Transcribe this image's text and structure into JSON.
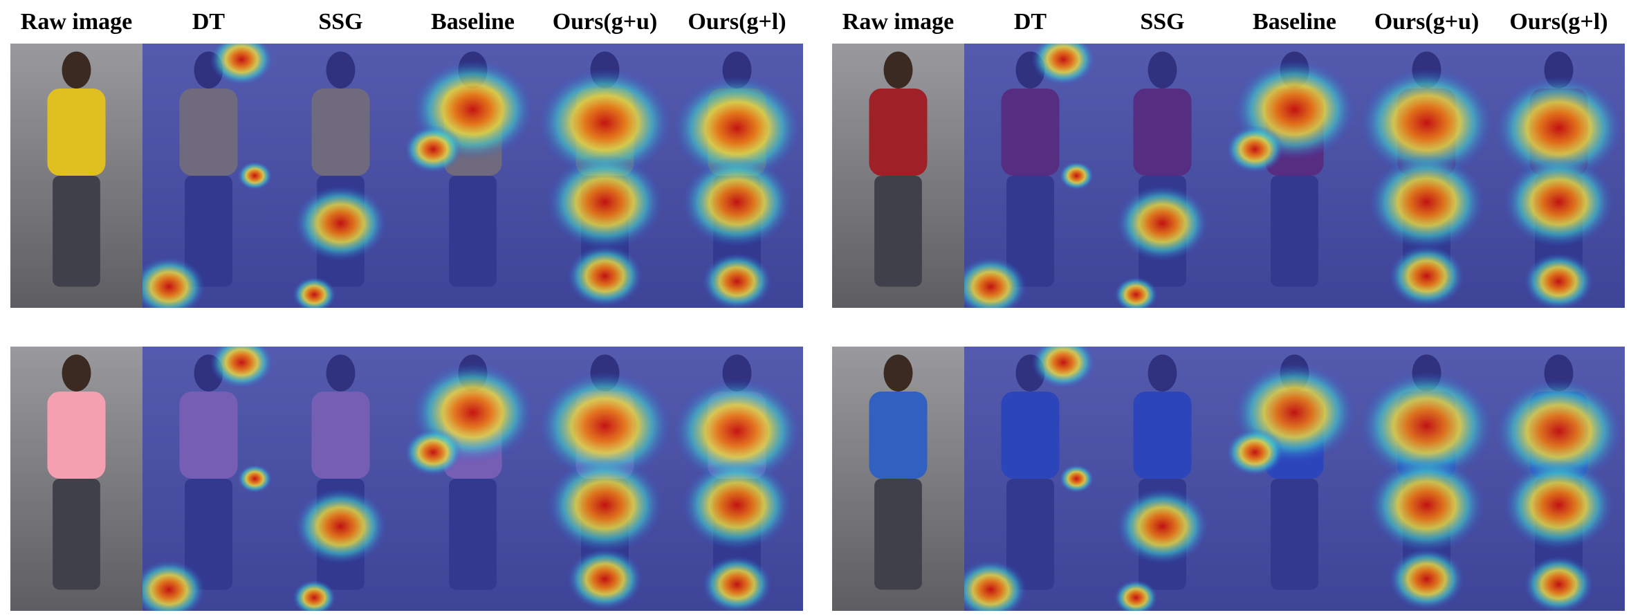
{
  "panels": [
    {
      "headers": [
        "Raw image",
        "DT",
        "SSG",
        "Baseline",
        "Ours(g+u)",
        "Ours(g+l)"
      ]
    },
    {
      "headers": [
        "Raw image",
        "DT",
        "SSG",
        "Baseline",
        "Ours(g+u)",
        "Ours(g+l)"
      ]
    }
  ]
}
